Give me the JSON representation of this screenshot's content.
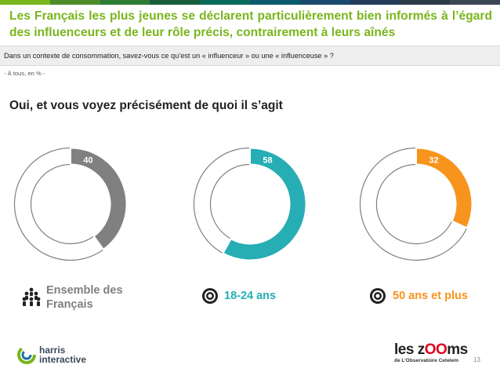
{
  "title": "Les Français les plus jeunes se déclarent particulièrement bien informés à l’égard des influenceurs et de leur rôle précis, contrairement à leurs aînés",
  "question": "Dans un contexte de consommation, savez-vous ce qu’est un « influenceur » ou une « influenceuse » ?",
  "base": "- À tous, en % -",
  "subtitle": "Oui, et vous voyez précisément de quoi il s’agit",
  "chart_data": {
    "type": "pie",
    "variant": "donut",
    "categories": [
      "Ensemble des Français",
      "18-24 ans",
      "50 ans et plus"
    ],
    "values": [
      40,
      58,
      32
    ],
    "value_labels": [
      "40",
      "58",
      "32"
    ],
    "max": 100,
    "colors": [
      "#808080",
      "#26aeb4",
      "#f7941d"
    ]
  },
  "groups": [
    {
      "label_line1": "Ensemble des",
      "label_line2": "Français",
      "icon": "crowd-icon"
    },
    {
      "label": "18-24 ans",
      "icon": "target-icon"
    },
    {
      "label": "50 ans et plus",
      "icon": "target-icon"
    }
  ],
  "logos": {
    "harris_line1": "harris",
    "harris_line2": "interactive",
    "zooms_pre": "les z",
    "zooms_oo": "OO",
    "zooms_post": "ms",
    "zooms_sub": "de L’Observatoire Cetelem"
  },
  "page_number": "13",
  "topbar_colors": [
    "#7ab51d",
    "#4c8c2b",
    "#2e7d32",
    "#1b5e3b",
    "#0b6b5a",
    "#0c5a6e",
    "#1a4a6e",
    "#233c5a",
    "#2d3a4a",
    "#3a4656"
  ]
}
